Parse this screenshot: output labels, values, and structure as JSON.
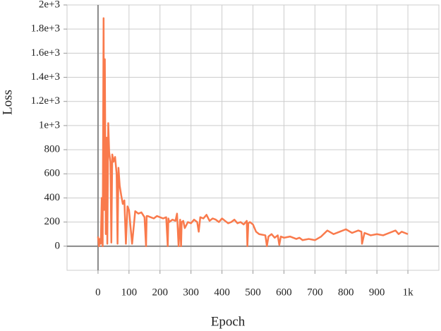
{
  "chart_data": {
    "type": "line",
    "x_label": "Epoch",
    "y_label": "Loss",
    "color": "#f97a4c",
    "grid": true,
    "xlim": [
      -100,
      1100
    ],
    "xticks": [
      0,
      100,
      200,
      300,
      400,
      500,
      600,
      700,
      800,
      900,
      {
        "value": 1000,
        "label": "1k"
      }
    ],
    "ylim": [
      -200,
      2000
    ],
    "yticks": [
      0,
      200,
      400,
      600,
      800,
      {
        "value": 1000,
        "label": "1e+3"
      },
      {
        "value": 1200,
        "label": "1.2e+3"
      },
      {
        "value": 1400,
        "label": "1.4e+3"
      },
      {
        "value": 1600,
        "label": "1.6e+3"
      },
      {
        "value": 1800,
        "label": "1.8e+3"
      },
      {
        "value": 2000,
        "label": "2e+3"
      }
    ],
    "x": [
      0,
      3,
      6,
      9,
      12,
      15,
      18,
      20,
      22,
      25,
      28,
      30,
      33,
      36,
      40,
      43,
      46,
      50,
      55,
      60,
      63,
      66,
      70,
      75,
      80,
      85,
      90,
      95,
      100,
      110,
      120,
      130,
      140,
      150,
      155,
      157,
      160,
      170,
      180,
      190,
      200,
      210,
      220,
      225,
      227,
      230,
      240,
      250,
      255,
      260,
      265,
      268,
      270,
      275,
      280,
      290,
      300,
      310,
      320,
      325,
      330,
      340,
      350,
      360,
      370,
      380,
      390,
      400,
      410,
      420,
      430,
      440,
      450,
      460,
      470,
      480,
      482,
      485,
      490,
      500,
      510,
      520,
      540,
      545,
      550,
      560,
      570,
      580,
      585,
      590,
      600,
      620,
      640,
      650,
      660,
      680,
      700,
      720,
      740,
      760,
      780,
      800,
      820,
      840,
      850,
      852,
      860,
      880,
      900,
      920,
      940,
      960,
      970,
      980,
      1000
    ],
    "values": [
      80,
      0,
      60,
      20,
      400,
      0,
      1890,
      300,
      1550,
      100,
      900,
      20,
      1020,
      780,
      700,
      30,
      760,
      700,
      740,
      600,
      20,
      650,
      500,
      420,
      350,
      380,
      20,
      330,
      300,
      20,
      290,
      270,
      280,
      240,
      0,
      250,
      250,
      240,
      230,
      250,
      240,
      230,
      240,
      0,
      230,
      200,
      220,
      210,
      270,
      0,
      220,
      0,
      200,
      210,
      150,
      200,
      190,
      220,
      200,
      120,
      240,
      230,
      260,
      210,
      230,
      220,
      200,
      230,
      210,
      190,
      200,
      220,
      190,
      200,
      180,
      210,
      0,
      190,
      200,
      180,
      120,
      100,
      90,
      0,
      80,
      100,
      70,
      90,
      10,
      80,
      70,
      80,
      60,
      70,
      50,
      60,
      50,
      80,
      130,
      100,
      120,
      140,
      110,
      130,
      120,
      20,
      110,
      90,
      100,
      90,
      110,
      130,
      100,
      120,
      100
    ]
  }
}
